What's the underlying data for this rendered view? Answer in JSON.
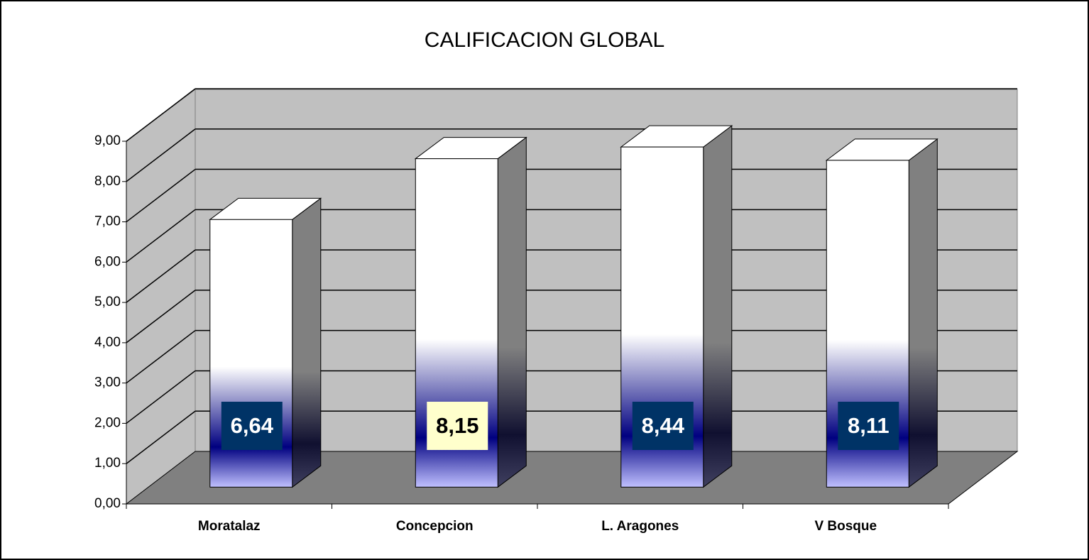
{
  "chart_data": {
    "type": "bar3d",
    "title": "CALIFICACION GLOBAL",
    "categories": [
      "Moratalaz",
      "Concepcion",
      "L. Aragones",
      "V Bosque"
    ],
    "values": [
      6.64,
      8.15,
      8.44,
      8.11
    ],
    "value_labels": [
      "6,64",
      "8,15",
      "8,44",
      "8,11"
    ],
    "label_box_colors": [
      "#003366",
      "#ffffcc",
      "#003366",
      "#003366"
    ],
    "color": "#000080",
    "ylim": [
      0,
      9
    ],
    "yticks": [
      {
        "value": 0,
        "label": "0,00"
      },
      {
        "value": 1,
        "label": "1,00"
      },
      {
        "value": 2,
        "label": "2,00"
      },
      {
        "value": 3,
        "label": "3,00"
      },
      {
        "value": 4,
        "label": "4,00"
      },
      {
        "value": 5,
        "label": "5,00"
      },
      {
        "value": 6,
        "label": "6,00"
      },
      {
        "value": 7,
        "label": "7,00"
      },
      {
        "value": 8,
        "label": "8,00"
      },
      {
        "value": 9,
        "label": "9,00"
      }
    ],
    "grid": true
  }
}
